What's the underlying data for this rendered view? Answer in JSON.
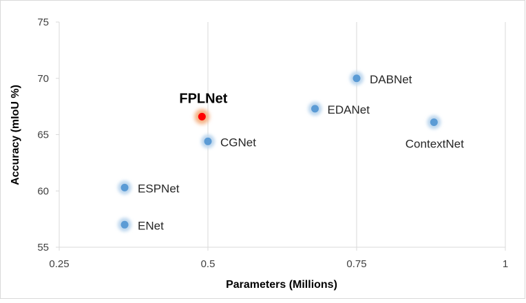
{
  "chart_data": {
    "type": "scatter",
    "title": "",
    "xlabel": "Parameters (Millions)",
    "ylabel": "Accuracy (mIoU %)",
    "xlim": [
      0.25,
      1
    ],
    "ylim": [
      55,
      75
    ],
    "x_ticks": [
      0.25,
      0.5,
      0.75,
      1
    ],
    "x_tick_labels": [
      "0.25",
      "0.5",
      "0.75",
      "1"
    ],
    "y_ticks": [
      55,
      60,
      65,
      70,
      75
    ],
    "y_tick_labels": [
      "55",
      "60",
      "65",
      "70",
      "75"
    ],
    "grid": "vertical",
    "legend": "none",
    "colors": {
      "default_point": "#5B9BD5",
      "default_glow": "#BDD7EE",
      "highlight_point": "#FF0000",
      "highlight_glow": "#F4B183",
      "grid": "#D9D9D9",
      "border": "#D9D9D9"
    },
    "points": [
      {
        "name": "FPLNet",
        "x": 0.49,
        "y": 66.6,
        "highlight": true
      },
      {
        "name": "CGNet",
        "x": 0.5,
        "y": 64.4,
        "highlight": false
      },
      {
        "name": "DABNet",
        "x": 0.75,
        "y": 70.0,
        "highlight": false
      },
      {
        "name": "EDANet",
        "x": 0.68,
        "y": 67.3,
        "highlight": false
      },
      {
        "name": "ContextNet",
        "x": 0.88,
        "y": 66.1,
        "highlight": false
      },
      {
        "name": "ESPNet",
        "x": 0.36,
        "y": 60.3,
        "highlight": false
      },
      {
        "name": "ENet",
        "x": 0.36,
        "y": 57.0,
        "highlight": false
      }
    ]
  }
}
